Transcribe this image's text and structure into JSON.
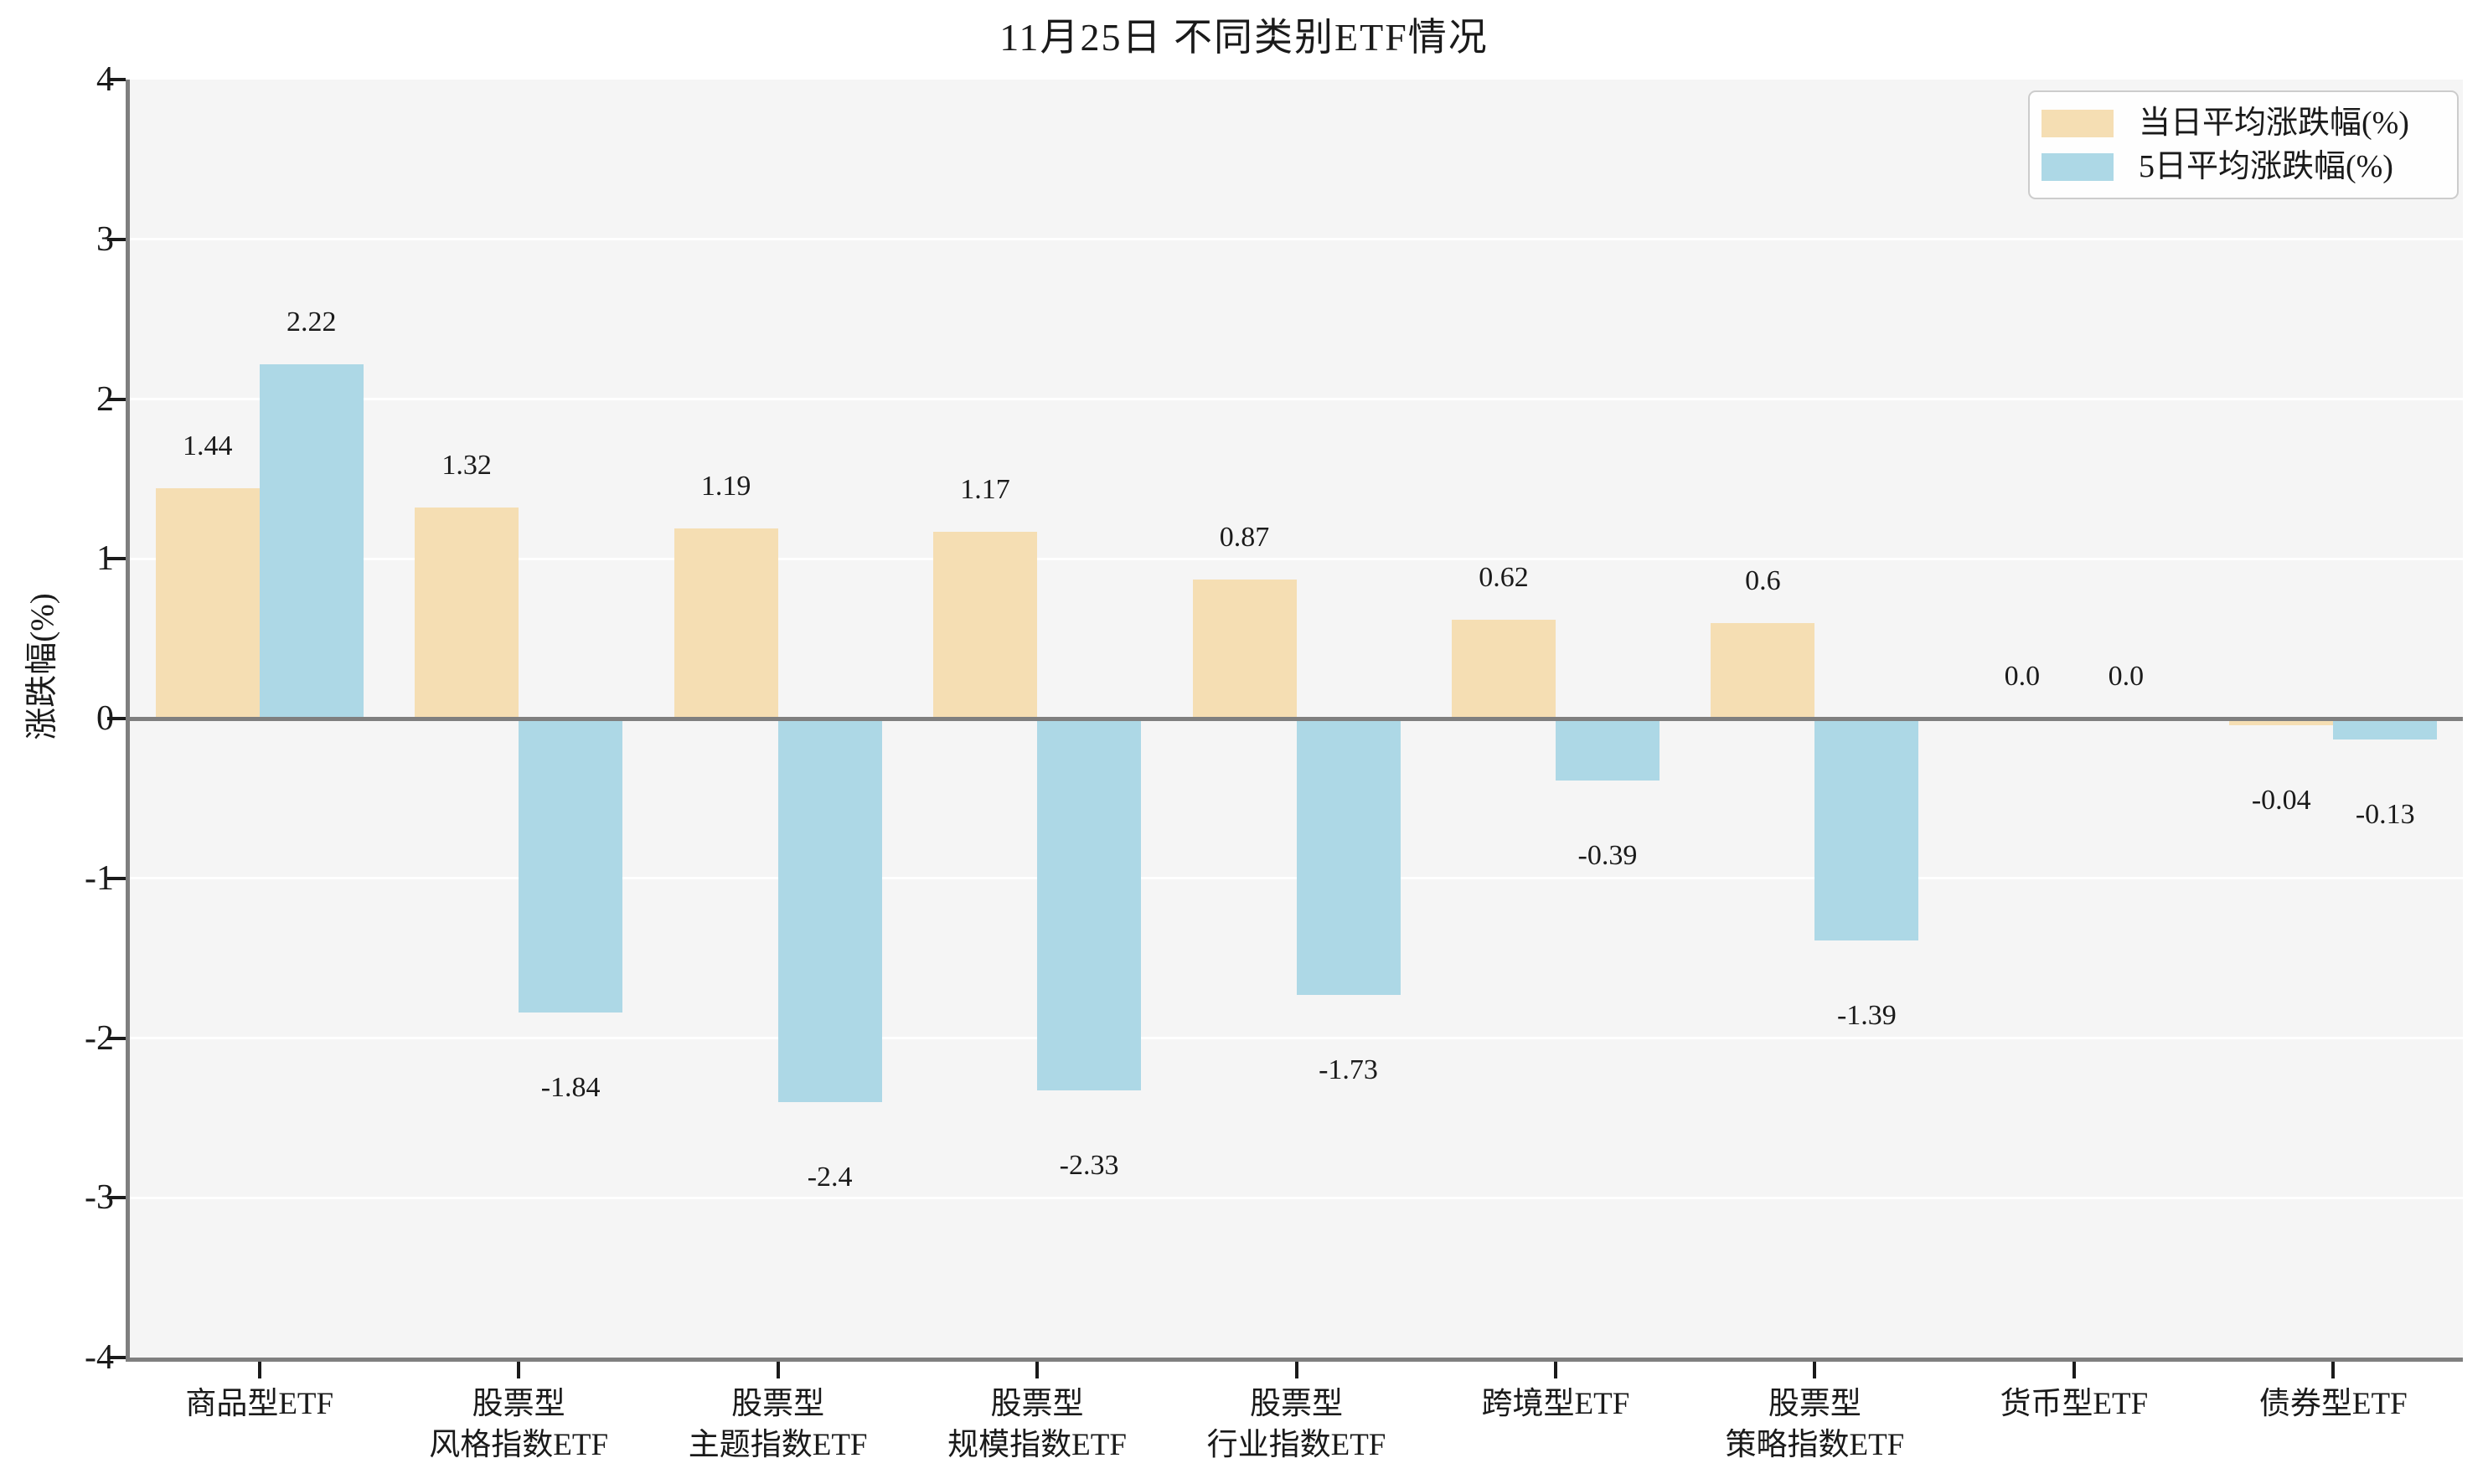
{
  "title": "11月25日 不同类别ETF情况",
  "colors": {
    "series_day": "#F5DEB3",
    "series_5day": "#ADD8E6",
    "plot_background": "#F5F5F5",
    "gridline": "#FFFFFF",
    "spine": "#7F7F7F",
    "text": "#1A1A1A"
  },
  "legend": {
    "items": [
      {
        "label": "当日平均涨跌幅(%)",
        "color": "#F5DEB3"
      },
      {
        "label": "5日平均涨跌幅(%)",
        "color": "#ADD8E6"
      }
    ]
  },
  "chart_data": {
    "type": "bar",
    "title": "11月25日 不同类别ETF情况",
    "ylabel": "涨跌幅(%)",
    "xlabel": "",
    "ylim": [
      -4,
      4
    ],
    "grid": true,
    "legend_position": "upper right",
    "y_ticks": [
      "4",
      "3",
      "2",
      "1",
      "0",
      "-1",
      "-2",
      "-3",
      "-4"
    ],
    "categories": [
      [
        "商品型ETF"
      ],
      [
        "股票型",
        "风格指数ETF"
      ],
      [
        "股票型",
        "主题指数ETF"
      ],
      [
        "股票型",
        "规模指数ETF"
      ],
      [
        "股票型",
        "行业指数ETF"
      ],
      [
        "跨境型ETF"
      ],
      [
        "股票型",
        "策略指数ETF"
      ],
      [
        "货币型ETF"
      ],
      [
        "债券型ETF"
      ]
    ],
    "series": [
      {
        "name": "当日平均涨跌幅(%)",
        "color": "#F5DEB3",
        "values": [
          1.44,
          1.32,
          1.19,
          1.17,
          0.87,
          0.62,
          0.6,
          0.0,
          -0.04
        ],
        "labels": [
          "1.44",
          "1.32",
          "1.19",
          "1.17",
          "0.87",
          "0.62",
          "0.6",
          "0.0",
          "-0.04"
        ]
      },
      {
        "name": "5日平均涨跌幅(%)",
        "color": "#ADD8E6",
        "values": [
          2.22,
          -1.84,
          -2.4,
          -2.33,
          -1.73,
          -0.39,
          -1.39,
          0.0,
          -0.13
        ],
        "labels": [
          "2.22",
          "-1.84",
          "-2.4",
          "-2.33",
          "-1.73",
          "-0.39",
          "-1.39",
          "0.0",
          "-0.13"
        ]
      }
    ]
  }
}
